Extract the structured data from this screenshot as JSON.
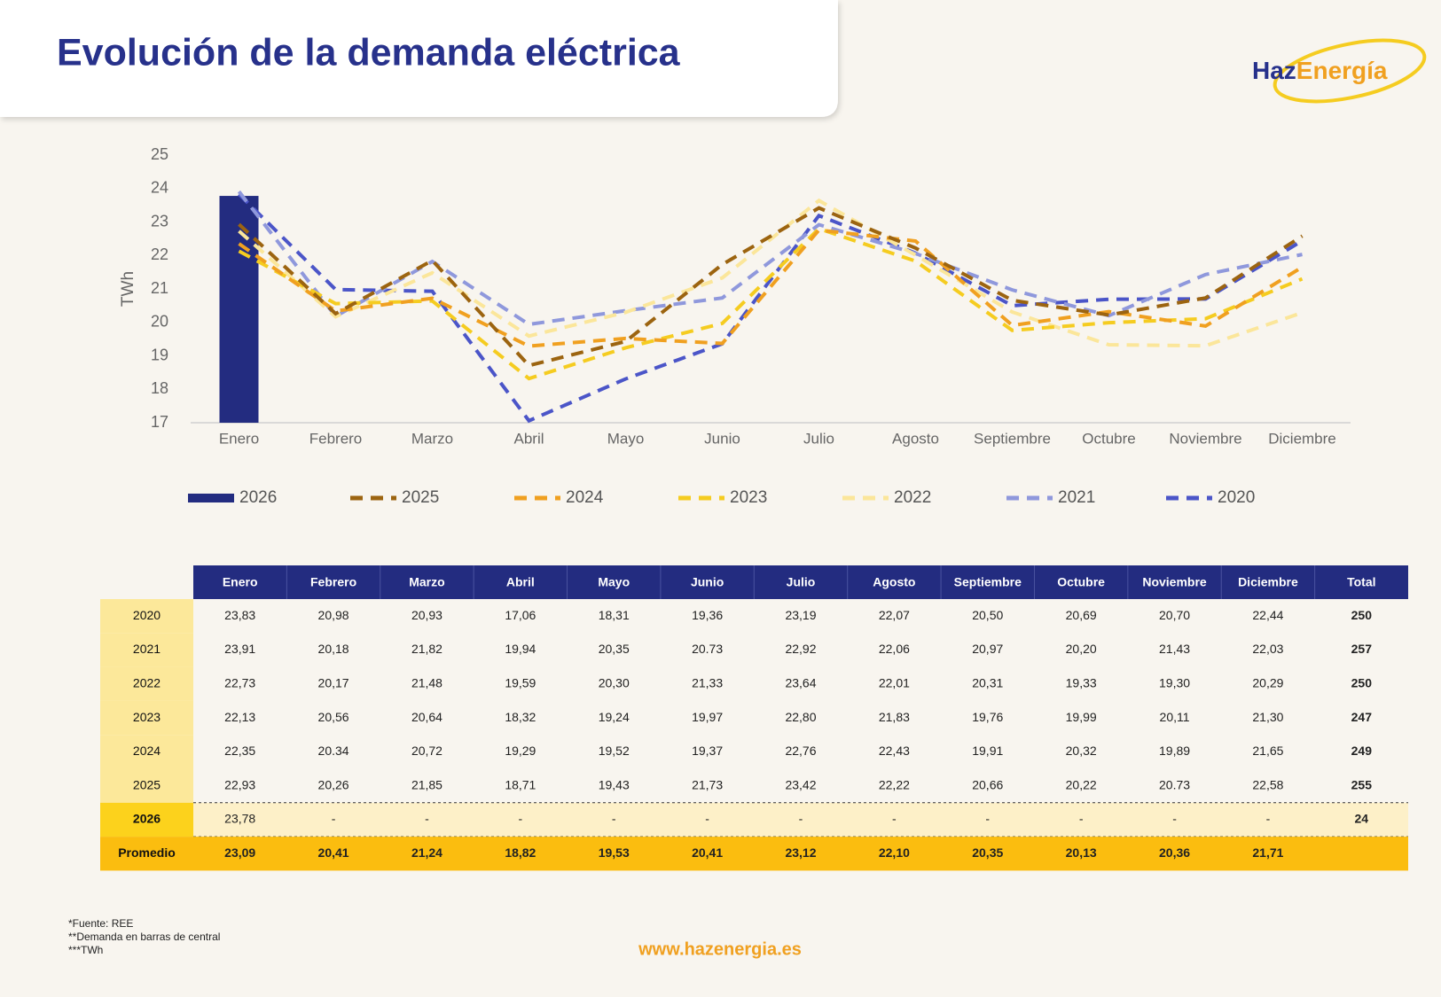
{
  "header": {
    "title": "Evolución de la demanda eléctrica",
    "logo_a": "Haz",
    "logo_b": "Energía"
  },
  "chart_data": {
    "type": "combo",
    "y_label": "TWh",
    "categories": [
      "Enero",
      "Febrero",
      "Marzo",
      "Abril",
      "Mayo",
      "Junio",
      "Julio",
      "Agosto",
      "Septiembre",
      "Octubre",
      "Noviembre",
      "Diciembre"
    ],
    "ylim": [
      17,
      25
    ],
    "yticks": [
      17,
      18,
      19,
      20,
      21,
      22,
      23,
      24,
      25
    ],
    "line_style": "dashed",
    "legend": "bottom",
    "series": [
      {
        "name": "2026",
        "type": "bar",
        "color": "#232c80",
        "values": [
          23.78,
          null,
          null,
          null,
          null,
          null,
          null,
          null,
          null,
          null,
          null,
          null
        ]
      },
      {
        "name": "2025",
        "type": "line",
        "color": "#9c6410",
        "values": [
          22.93,
          20.26,
          21.85,
          18.71,
          19.43,
          21.73,
          23.42,
          22.22,
          20.66,
          20.22,
          20.73,
          22.58
        ]
      },
      {
        "name": "2024",
        "type": "line",
        "color": "#f0a020",
        "values": [
          22.35,
          20.34,
          20.72,
          19.29,
          19.52,
          19.37,
          22.76,
          22.43,
          19.91,
          20.32,
          19.89,
          21.65
        ]
      },
      {
        "name": "2023",
        "type": "line",
        "color": "#f5cc20",
        "values": [
          22.13,
          20.56,
          20.64,
          18.32,
          19.24,
          19.97,
          22.8,
          21.83,
          19.76,
          19.99,
          20.11,
          21.3
        ]
      },
      {
        "name": "2022",
        "type": "line",
        "color": "#fbe69a",
        "values": [
          22.73,
          20.17,
          21.48,
          19.59,
          20.3,
          21.33,
          23.64,
          22.01,
          20.31,
          19.33,
          19.3,
          20.29
        ]
      },
      {
        "name": "2021",
        "type": "line",
        "color": "#8f98dc",
        "values": [
          23.91,
          20.18,
          21.82,
          19.94,
          20.35,
          20.73,
          22.92,
          22.06,
          20.97,
          20.2,
          21.43,
          22.03
        ]
      },
      {
        "name": "2020",
        "type": "line",
        "color": "#4b55c8",
        "values": [
          23.83,
          20.98,
          20.93,
          17.06,
          18.31,
          19.36,
          23.19,
          22.07,
          20.5,
          20.69,
          20.7,
          22.44
        ]
      }
    ]
  },
  "table": {
    "columns": [
      "Enero",
      "Febrero",
      "Marzo",
      "Abril",
      "Mayo",
      "Junio",
      "Julio",
      "Agosto",
      "Septiembre",
      "Octubre",
      "Noviembre",
      "Diciembre",
      "Total"
    ],
    "rows": [
      {
        "label": "2020",
        "cells": [
          "23,83",
          "20,98",
          "20,93",
          "17,06",
          "18,31",
          "19,36",
          "23,19",
          "22,07",
          "20,50",
          "20,69",
          "20,70",
          "22,44",
          "250"
        ]
      },
      {
        "label": "2021",
        "cells": [
          "23,91",
          "20,18",
          "21,82",
          "19,94",
          "20,35",
          "20.73",
          "22,92",
          "22,06",
          "20,97",
          "20,20",
          "21,43",
          "22,03",
          "257"
        ]
      },
      {
        "label": "2022",
        "cells": [
          "22,73",
          "20,17",
          "21,48",
          "19,59",
          "20,30",
          "21,33",
          "23,64",
          "22,01",
          "20,31",
          "19,33",
          "19,30",
          "20,29",
          "250"
        ]
      },
      {
        "label": "2023",
        "cells": [
          "22,13",
          "20,56",
          "20,64",
          "18,32",
          "19,24",
          "19,97",
          "22,80",
          "21,83",
          "19,76",
          "19,99",
          "20,11",
          "21,30",
          "247"
        ]
      },
      {
        "label": "2024",
        "cells": [
          "22,35",
          "20.34",
          "20,72",
          "19,29",
          "19,52",
          "19,37",
          "22,76",
          "22,43",
          "19,91",
          "20,32",
          "19,89",
          "21,65",
          "249"
        ]
      },
      {
        "label": "2025",
        "cells": [
          "22,93",
          "20,26",
          "21,85",
          "18,71",
          "19,43",
          "21,73",
          "23,42",
          "22,22",
          "20,66",
          "20,22",
          "20.73",
          "22,58",
          "255"
        ]
      }
    ],
    "current": {
      "label": "2026",
      "cells": [
        "23,78",
        "-",
        "-",
        "-",
        "-",
        "-",
        "-",
        "-",
        "-",
        "-",
        "-",
        "-",
        "24"
      ]
    },
    "average": {
      "label": "Promedio",
      "cells": [
        "23,09",
        "20,41",
        "21,24",
        "18,82",
        "19,53",
        "20,41",
        "23,12",
        "22,10",
        "20,35",
        "20,13",
        "20,36",
        "21,71"
      ]
    }
  },
  "footnotes": [
    "*Fuente: REE",
    "**Demanda en barras de central",
    "***TWh"
  ],
  "footer": {
    "url": "www.hazenergia.es"
  }
}
